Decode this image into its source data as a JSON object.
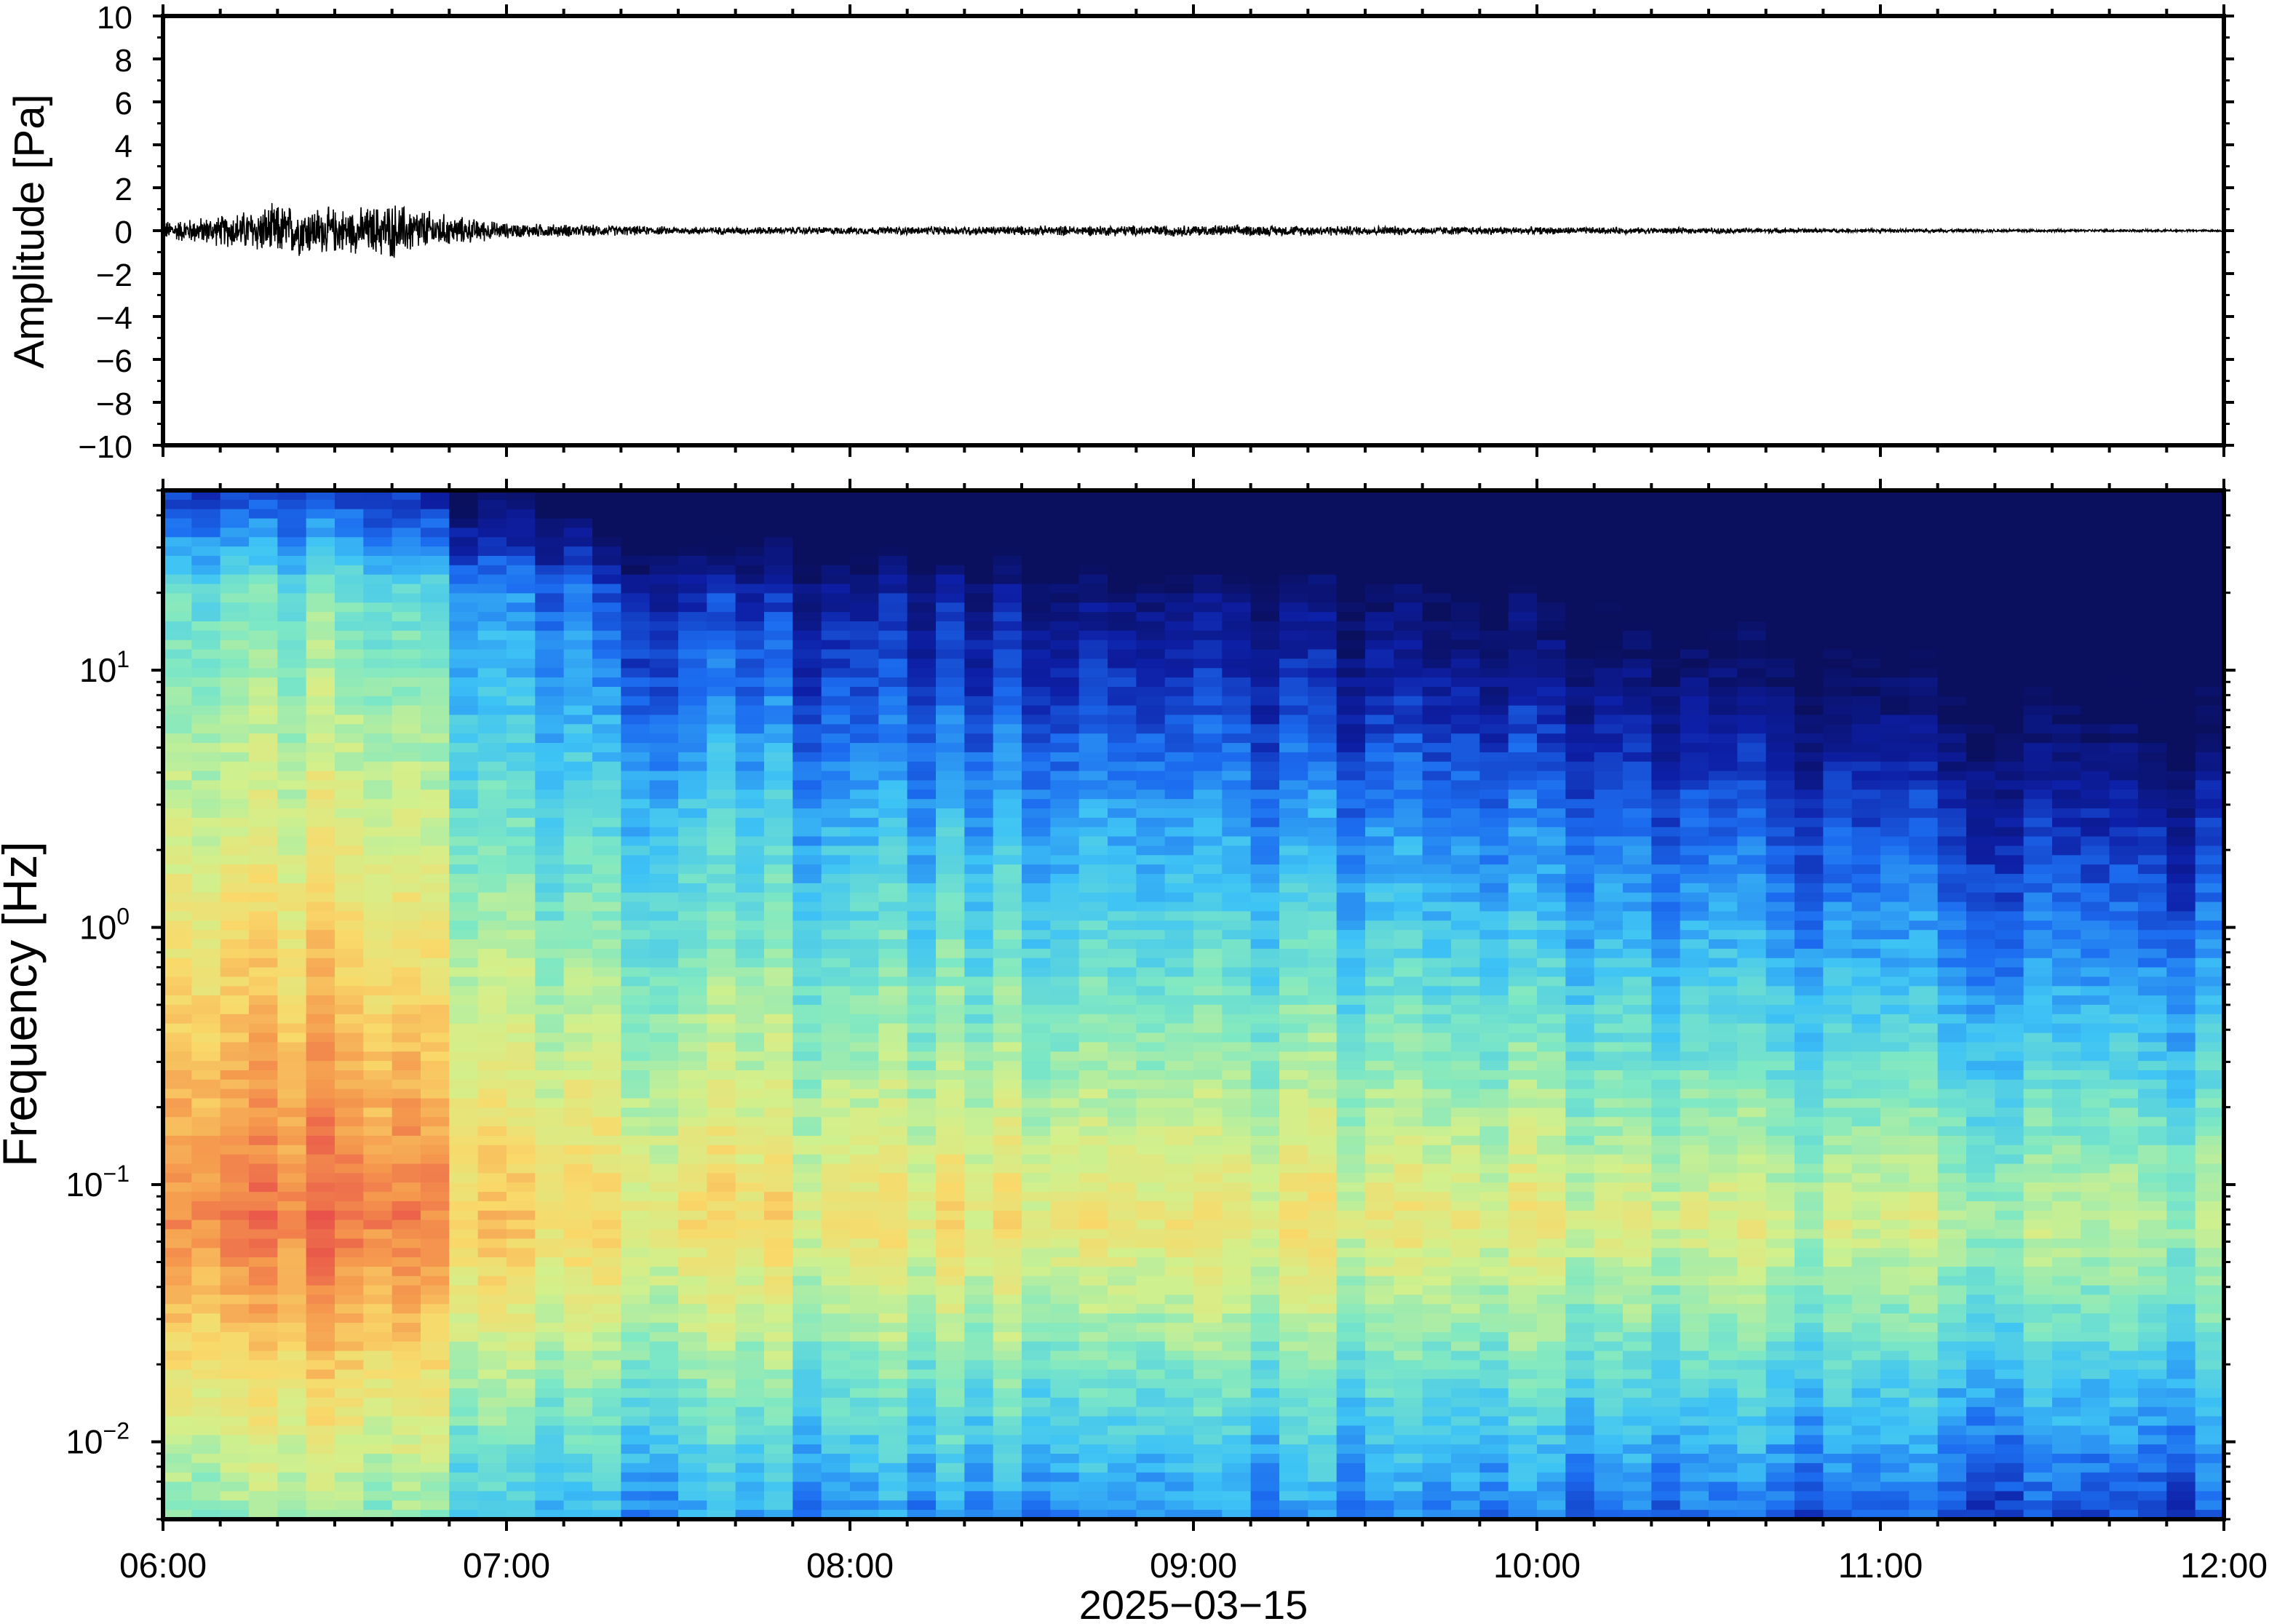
{
  "colors": {
    "background": "#ffffff",
    "frame": "#000000",
    "waveform": "#000000",
    "colormap": [
      "#0a0f5e",
      "#0d1fa6",
      "#1c6cf0",
      "#3ec3f5",
      "#7ee8c4",
      "#d2f08c",
      "#f9d96a",
      "#f59a4e",
      "#e9524a"
    ]
  },
  "chart_data": [
    {
      "type": "line",
      "ylabel": "Amplitude [Pa]",
      "ylim": [
        -10,
        10
      ],
      "yticks": [
        "10",
        "8",
        "6",
        "4",
        "2",
        "0",
        "−2",
        "−4",
        "−6",
        "−8",
        "−10"
      ],
      "xlim_hours": [
        6,
        12
      ],
      "grid": false,
      "series": [
        {
          "envelope": [
            {
              "time": "06:00",
              "amplitude": 0.5
            },
            {
              "time": "06:10",
              "amplitude": 0.8
            },
            {
              "time": "06:20",
              "amplitude": 1.4
            },
            {
              "time": "06:30",
              "amplitude": 1.2
            },
            {
              "time": "06:35",
              "amplitude": 1.2
            },
            {
              "time": "06:40",
              "amplitude": 1.5
            },
            {
              "time": "06:50",
              "amplitude": 0.8
            },
            {
              "time": "07:00",
              "amplitude": 0.4
            },
            {
              "time": "07:30",
              "amplitude": 0.2
            },
            {
              "time": "08:00",
              "amplitude": 0.2
            },
            {
              "time": "09:00",
              "amplitude": 0.3
            },
            {
              "time": "10:00",
              "amplitude": 0.2
            },
            {
              "time": "11:00",
              "amplitude": 0.1
            },
            {
              "time": "12:00",
              "amplitude": 0.05
            }
          ]
        }
      ]
    },
    {
      "type": "heatmap",
      "ylabel": "Frequency [Hz]",
      "yscale": "log",
      "ylim": [
        0.005,
        50
      ],
      "yticks": [
        {
          "value": 10,
          "base": "10",
          "exp": "1"
        },
        {
          "value": 1,
          "base": "10",
          "exp": "0"
        },
        {
          "value": 0.1,
          "base": "10",
          "exp": "−1"
        },
        {
          "value": 0.01,
          "base": "10",
          "exp": "−2"
        }
      ],
      "xlabel": "2025−03−15",
      "xticks": [
        "06:00",
        "07:00",
        "08:00",
        "09:00",
        "10:00",
        "11:00",
        "12:00"
      ],
      "xlim_hours": [
        6,
        12
      ],
      "colorscale": "jet (relative power, low = dark blue, high = red)",
      "power_trend": [
        {
          "time": "06:00",
          "peak_level": 0.85,
          "quiet_top": false
        },
        {
          "time": "06:20",
          "peak_level": 0.95,
          "quiet_top": false
        },
        {
          "time": "06:35",
          "peak_level": 0.95,
          "quiet_top": false
        },
        {
          "time": "06:50",
          "peak_level": 0.85,
          "quiet_top": false
        },
        {
          "time": "07:00",
          "peak_level": 0.75,
          "quiet_top": false
        },
        {
          "time": "07:30",
          "peak_level": 0.72,
          "quiet_top": true
        },
        {
          "time": "08:00",
          "peak_level": 0.7,
          "quiet_top": true
        },
        {
          "time": "09:00",
          "peak_level": 0.7,
          "quiet_top": true
        },
        {
          "time": "10:00",
          "peak_level": 0.68,
          "quiet_top": true
        },
        {
          "time": "11:00",
          "peak_level": 0.62,
          "quiet_top": true
        },
        {
          "time": "12:00",
          "peak_level": 0.6,
          "quiet_top": true
        }
      ]
    }
  ]
}
